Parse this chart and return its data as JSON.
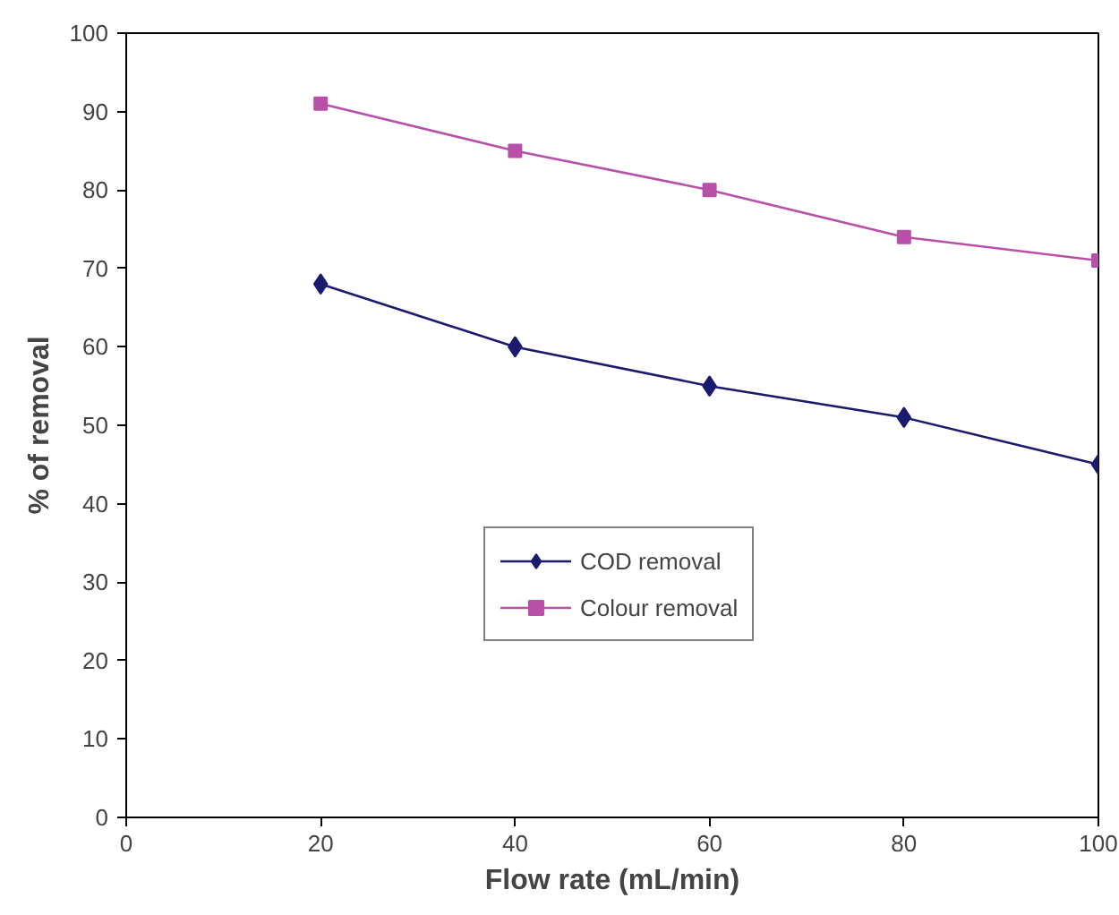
{
  "chart_data": {
    "type": "line",
    "xlabel": "Flow rate (mL/min)",
    "ylabel": "% of removal",
    "x": [
      20,
      40,
      60,
      80,
      100
    ],
    "series": [
      {
        "name": "COD removal",
        "color": "#1a1a6e",
        "values": [
          68,
          60,
          55,
          51,
          45
        ],
        "marker": "diamond"
      },
      {
        "name": "Colour removal",
        "color": "#b84fa8",
        "values": [
          91,
          85,
          80,
          74,
          71
        ],
        "marker": "square"
      }
    ],
    "xlim": [
      0,
      100
    ],
    "ylim": [
      0,
      100
    ],
    "xticks": [
      0,
      20,
      40,
      60,
      80,
      100
    ],
    "yticks": [
      0,
      10,
      20,
      30,
      40,
      50,
      60,
      70,
      80,
      90,
      100
    ],
    "grid": false,
    "legend": "center"
  }
}
